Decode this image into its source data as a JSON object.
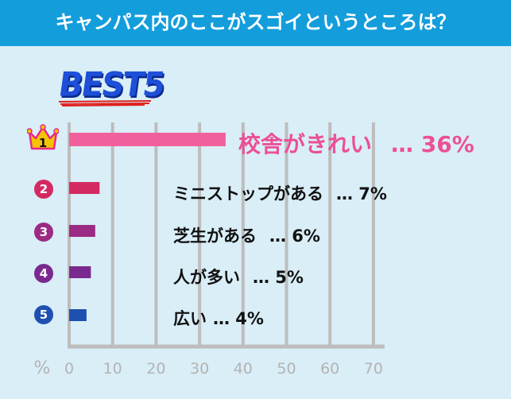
{
  "header": {
    "title": "キャンパス内のここがスゴイというところは？"
  },
  "badge": {
    "text": "BEST5"
  },
  "colors": {
    "header_bg": "#139ddb",
    "bg": "#d9eef7",
    "grid": "#bdbdbd",
    "bar1": "#f1609c",
    "bar2": "#d42a62",
    "bar3": "#9b2b83",
    "bar4": "#7a2a8e",
    "bar5": "#1f4fb0",
    "top_label": "#ec4f97"
  },
  "chart_data": {
    "type": "bar",
    "orientation": "horizontal",
    "categories": [
      "校舎がきれい",
      "ミニストップがある",
      "芝生がある",
      "人が多い",
      "広い"
    ],
    "values": [
      36,
      7,
      6,
      5,
      4
    ],
    "ranks": [
      "1",
      "2",
      "3",
      "4",
      "5"
    ],
    "value_labels": [
      "… 36%",
      "… 7%",
      "… 6%",
      "… 5%",
      "… 4%"
    ],
    "xlim": [
      0,
      70
    ],
    "xticks": [
      "0",
      "10",
      "20",
      "30",
      "40",
      "50",
      "60",
      "70"
    ],
    "xunit": "%",
    "grid": true
  }
}
